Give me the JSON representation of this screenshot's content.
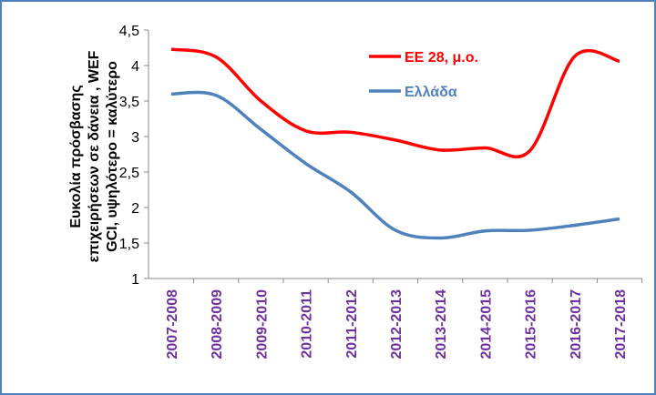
{
  "chart_data": {
    "type": "line",
    "ylabel": [
      "Ευκολία πρόσβασης",
      "επιχειρήσεων σε δάνεια , WEF",
      "GCI, υψηλότερο = καλύτερο"
    ],
    "categories": [
      "2007-2008",
      "2008-2009",
      "2009-2010",
      "2010-2011",
      "2011-2012",
      "2012-2013",
      "2013-2014",
      "2014-2015",
      "2015-2016",
      "2016-2017",
      "2017-2018"
    ],
    "series": [
      {
        "name": "ΕΕ 28, μ.ο.",
        "color": "#ff0000",
        "values": [
          4.23,
          4.12,
          3.5,
          3.08,
          3.06,
          2.95,
          2.81,
          2.84,
          2.8,
          4.13,
          4.06
        ]
      },
      {
        "name": "Ελλάδα",
        "color": "#4f81bd",
        "values": [
          3.6,
          3.58,
          3.1,
          2.62,
          2.22,
          1.68,
          1.57,
          1.67,
          1.68,
          1.75,
          1.84
        ]
      }
    ],
    "ylim": [
      1,
      4.5
    ],
    "yticks": [
      1,
      {
        "value": 1.5,
        "label": "1,5"
      },
      2,
      {
        "value": 2.5,
        "label": "2,5"
      },
      3,
      {
        "value": 3.5,
        "label": "3,5"
      },
      4,
      {
        "value": 4.5,
        "label": "4,5"
      }
    ],
    "xtick_color": "#7030a0",
    "grid": false,
    "legend": "upper right"
  }
}
